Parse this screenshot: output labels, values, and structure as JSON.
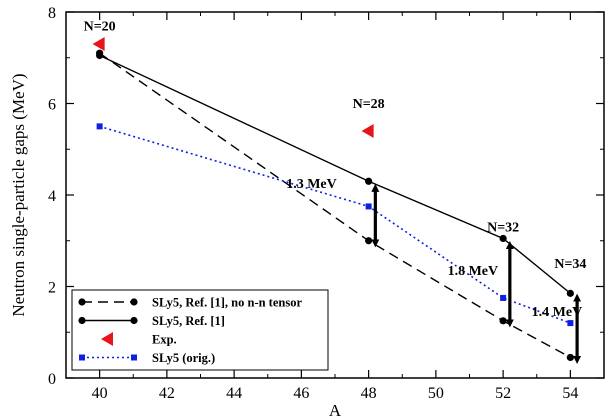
{
  "chart_data": {
    "type": "line",
    "xlabel": "A",
    "ylabel": "Neutron single-particle gaps (MeV)",
    "xlim": [
      39,
      55
    ],
    "ylim": [
      0,
      8
    ],
    "xticks": [
      "40",
      "42",
      "44",
      "46",
      "48",
      "50",
      "52",
      "54"
    ],
    "yticks": [
      "0",
      "2",
      "4",
      "6",
      "8"
    ],
    "grid": false,
    "legend_position": "bottom-left",
    "series": [
      {
        "name": "SLy5, Ref. [1], no n-n tensor",
        "style": "dashed",
        "marker": "circle",
        "color": "#000000",
        "x": [
          40,
          48,
          52,
          54
        ],
        "y": [
          7.1,
          3.0,
          1.25,
          0.45
        ]
      },
      {
        "name": "SLy5, Ref. [1]",
        "style": "solid",
        "marker": "circle",
        "color": "#000000",
        "x": [
          40,
          48,
          52,
          54
        ],
        "y": [
          7.05,
          4.3,
          3.05,
          1.85
        ]
      },
      {
        "name": "Exp.",
        "style": "none",
        "marker": "triangle-left",
        "color": "#e8141c",
        "x": [
          40,
          48
        ],
        "y": [
          7.3,
          5.4
        ]
      },
      {
        "name": "SLy5 (orig.)",
        "style": "dotted",
        "marker": "square",
        "color": "#1020e0",
        "x": [
          40,
          48,
          52,
          54
        ],
        "y": [
          5.5,
          3.75,
          1.75,
          1.2
        ]
      }
    ],
    "annotations": [
      {
        "text": "N=20",
        "x": 40,
        "y": 7.6
      },
      {
        "text": "N=28",
        "x": 48,
        "y": 5.9
      },
      {
        "text": "N=32",
        "x": 52,
        "y": 3.2
      },
      {
        "text": "N=34",
        "x": 54,
        "y": 2.4
      },
      {
        "text": "1.3 MeV",
        "x": 46.3,
        "y": 4.15
      },
      {
        "text": "1.8 MeV",
        "x": 51.1,
        "y": 2.25
      },
      {
        "text": "1.4 MeV",
        "x": 53.6,
        "y": 1.35
      }
    ],
    "arrows": [
      {
        "x": 48.2,
        "y_top": 4.2,
        "y_bottom": 2.9
      },
      {
        "x": 52.2,
        "y_top": 2.95,
        "y_bottom": 1.15
      },
      {
        "x": 54.2,
        "y_top": 1.8,
        "y_bottom": 0.35
      }
    ]
  }
}
